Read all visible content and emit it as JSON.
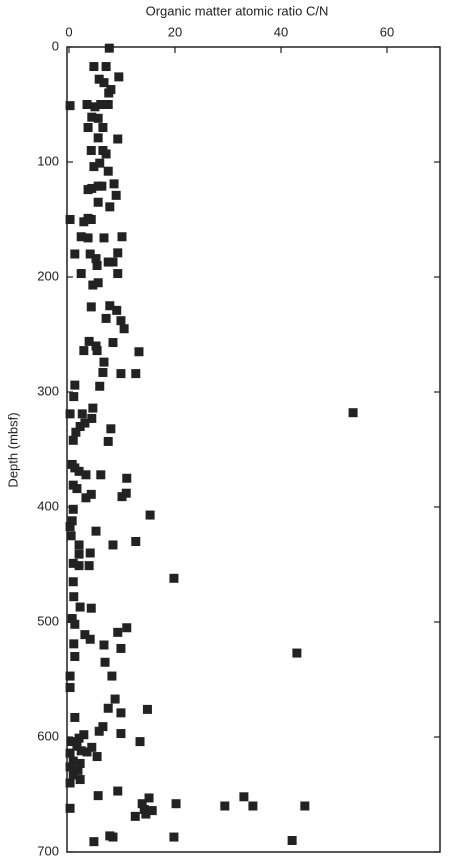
{
  "chart_data": {
    "type": "scatter",
    "xlabel": "Organic matter atomic ratio C/N",
    "ylabel": "Depth (mbsf)",
    "xlim": [
      0,
      70
    ],
    "xticks": [
      0,
      20,
      40,
      60
    ],
    "ylim": [
      0,
      700
    ],
    "yticks": [
      0,
      100,
      200,
      300,
      400,
      500,
      600,
      700
    ],
    "y_inverted": true,
    "x_axis_position": "top",
    "color": "#222222",
    "grid": false,
    "x": [
      7.6,
      4.7,
      7,
      9.4,
      5.7,
      6.6,
      7.9,
      7.5,
      0.2,
      3.4,
      4.9,
      6,
      7.4,
      4.3,
      5.5,
      6.4,
      3.6,
      9.2,
      5.5,
      4.2,
      6.4,
      7,
      5.8,
      4.7,
      7.4,
      8.5,
      6.2,
      4.3,
      5.5,
      3.6,
      8.9,
      5.5,
      7.7,
      0.2,
      4.2,
      2.8,
      3.6,
      10,
      2.3,
      3.6,
      6.6,
      1.1,
      4,
      9.2,
      5.1,
      7.4,
      8.3,
      5.3,
      2.3,
      9.2,
      4.5,
      5.5,
      4.2,
      7.7,
      9,
      7,
      9.8,
      10.4,
      3.8,
      8.3,
      5.1,
      2.8,
      5.3,
      13.2,
      6.6,
      6.4,
      9.8,
      12.6,
      1.1,
      5.8,
      0.9,
      4.5,
      53.6,
      0.2,
      2.5,
      4.3,
      3,
      2.1,
      1.3,
      7.9,
      0.8,
      7.4,
      0.6,
      1.1,
      1.9,
      3.2,
      6,
      10.9,
      0.8,
      1.5,
      10.8,
      10,
      4.2,
      3.2,
      0.8,
      15.3,
      0.6,
      0.2,
      5.1,
      0.4,
      12.6,
      1.9,
      8.3,
      1.9,
      4,
      0.8,
      1.9,
      3.8,
      19.8,
      0.8,
      0.9,
      2.1,
      4.2,
      0.6,
      1.1,
      10.9,
      9.2,
      3,
      4,
      0.9,
      6.6,
      9.8,
      43,
      1.1,
      6.8,
      0.2,
      8.1,
      0.2,
      8.7,
      14.8,
      7.4,
      9.8,
      1.1,
      6.4,
      5.7,
      9.8,
      2.8,
      1.9,
      0.4,
      13.4,
      1.5,
      4.3,
      2.3,
      0.2,
      3.4,
      5.3,
      0.8,
      2.1,
      0.2,
      1.7,
      0.8,
      2.1,
      0.2,
      9.2,
      5.5,
      33,
      15.1,
      13.8,
      20.2,
      29.4,
      34.7,
      44.5,
      0.2,
      14.2,
      15.7,
      14.5,
      12.5,
      7.7,
      8.3,
      19.8,
      42.1,
      4.7
    ],
    "values": [
      1,
      17,
      17,
      26,
      28,
      31,
      37,
      40,
      51,
      50,
      52,
      50,
      50,
      61,
      62,
      70,
      70,
      80,
      79,
      90,
      90,
      93,
      101,
      104,
      108,
      119,
      121,
      123,
      121,
      124,
      129,
      135,
      139,
      150,
      150,
      152,
      149,
      165,
      165,
      166,
      166,
      180,
      180,
      179,
      184,
      187,
      187,
      190,
      197,
      197,
      207,
      205,
      226,
      225,
      229,
      236,
      238,
      245,
      256,
      257,
      260,
      264,
      264,
      265,
      274,
      283,
      284,
      284,
      294,
      295,
      304,
      314,
      318,
      319,
      319,
      323,
      327,
      330,
      335,
      332,
      342,
      343,
      363,
      366,
      369,
      372,
      372,
      375,
      381,
      384,
      388,
      391,
      389,
      392,
      402,
      407,
      412,
      417,
      421,
      425,
      430,
      433,
      433,
      441,
      440,
      449,
      451,
      451,
      462,
      465,
      478,
      487,
      488,
      497,
      502,
      505,
      509,
      511,
      515,
      519,
      520,
      523,
      527,
      530,
      535,
      547,
      547,
      557,
      567,
      576,
      575,
      579,
      583,
      591,
      595,
      597,
      598,
      601,
      604,
      604,
      608,
      609,
      612,
      614,
      613,
      617,
      621,
      623,
      626,
      629,
      633,
      637,
      640,
      647,
      651,
      652,
      653,
      658,
      658,
      660,
      660,
      660,
      662,
      663,
      664,
      667,
      669,
      686,
      687,
      687,
      690,
      691
    ]
  }
}
